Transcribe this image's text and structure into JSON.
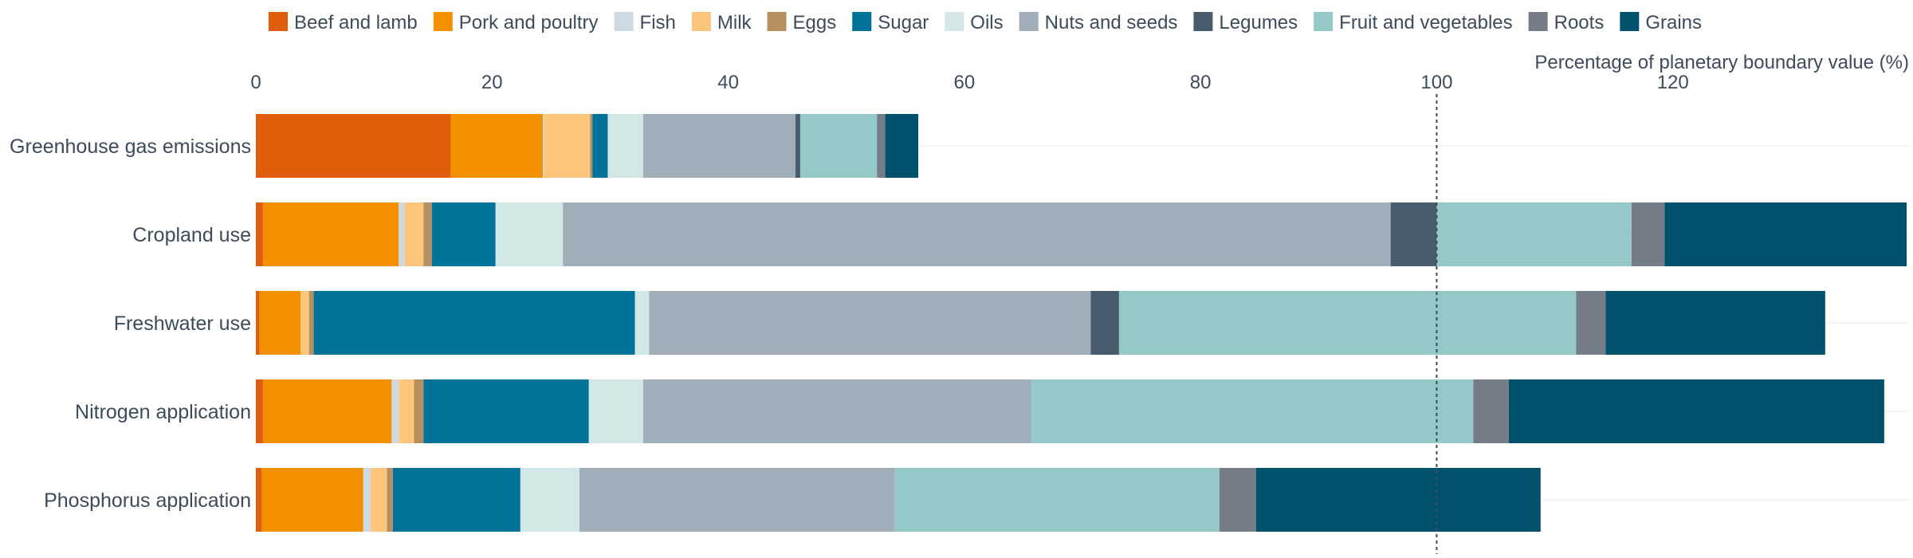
{
  "chart_data": {
    "type": "bar",
    "orientation": "horizontal",
    "stacked": true,
    "x_axis_title": "Percentage of planetary boundary value (%)",
    "xlim": [
      0,
      140
    ],
    "x_ticks": [
      "0",
      "20",
      "40",
      "60",
      "80",
      "100",
      "120"
    ],
    "x_tick_values": [
      0,
      20,
      40,
      60,
      80,
      100,
      120
    ],
    "x_axis_position": "top",
    "reference_line": 100,
    "legend_position": "top",
    "grid": true,
    "categories": [
      "Greenhouse gas emissions",
      "Cropland use",
      "Freshwater use",
      "Nitrogen application",
      "Phosphorus application"
    ],
    "series": [
      {
        "name": "Beef and lamb",
        "color": "#e05e0b",
        "values": [
          16.5,
          0.6,
          0.3,
          0.6,
          0.5
        ]
      },
      {
        "name": "Pork and poultry",
        "color": "#f39000",
        "values": [
          7.8,
          11.5,
          3.5,
          10.9,
          8.6
        ]
      },
      {
        "name": "Fish",
        "color": "#cdd9e3",
        "values": [
          0.1,
          0.5,
          0.0,
          0.6,
          0.6
        ]
      },
      {
        "name": "Milk",
        "color": "#fcc77c",
        "values": [
          3.9,
          1.6,
          0.7,
          1.3,
          1.4
        ]
      },
      {
        "name": "Eggs",
        "color": "#b89060",
        "values": [
          0.2,
          0.7,
          0.4,
          0.8,
          0.5
        ]
      },
      {
        "name": "Sugar",
        "color": "#00739a",
        "values": [
          1.3,
          5.4,
          27.2,
          14.0,
          10.8
        ]
      },
      {
        "name": "Oils",
        "color": "#d3e8e6",
        "values": [
          3.0,
          5.7,
          1.2,
          4.6,
          5.0
        ]
      },
      {
        "name": "Nuts and seeds",
        "color": "#a0aeba",
        "values": [
          12.9,
          70.1,
          37.4,
          32.9,
          26.7
        ]
      },
      {
        "name": "Legumes",
        "color": "#485c6e",
        "values": [
          0.4,
          3.9,
          2.4,
          0.0,
          0.0
        ]
      },
      {
        "name": "Fruit and vegetables",
        "color": "#95c9c8",
        "values": [
          6.5,
          16.5,
          38.7,
          37.4,
          27.5
        ]
      },
      {
        "name": "Roots",
        "color": "#737c87",
        "values": [
          0.7,
          2.8,
          2.5,
          3.0,
          3.1
        ]
      },
      {
        "name": "Grains",
        "color": "#00516b",
        "values": [
          2.8,
          20.5,
          18.6,
          31.8,
          24.1
        ]
      }
    ]
  }
}
